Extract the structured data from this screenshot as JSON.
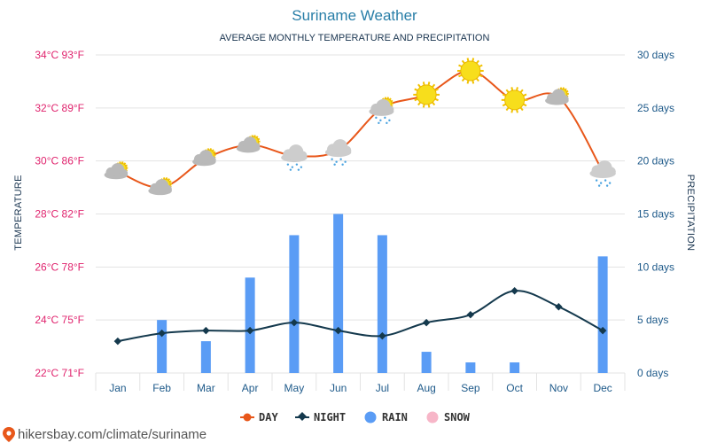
{
  "header": {
    "title": "Suriname Weather",
    "subtitle": "AVERAGE MONTHLY TEMPERATURE AND PRECIPITATION"
  },
  "axes": {
    "left_label": "TEMPERATURE",
    "right_label": "PRECIPITATION",
    "left_ticks": [
      "34°C 93°F",
      "32°C 89°F",
      "30°C 86°F",
      "28°C 82°F",
      "26°C 78°F",
      "24°C 75°F",
      "22°C 71°F"
    ],
    "right_ticks": [
      "30 days",
      "25 days",
      "20 days",
      "15 days",
      "10 days",
      "5 days",
      "0 days"
    ]
  },
  "legend": {
    "day": "DAY",
    "night": "NIGHT",
    "rain": "RAIN",
    "snow": "SNOW"
  },
  "source": "hikersbay.com/climate/suriname",
  "colors": {
    "day": "#e8571a",
    "night": "#14394d",
    "rain": "#5a9cf5",
    "snow": "#f7b6c8",
    "grid": "#e3e3e3"
  },
  "chart_data": {
    "type": "line",
    "categories": [
      "Jan",
      "Feb",
      "Mar",
      "Apr",
      "May",
      "Jun",
      "Jul",
      "Aug",
      "Sep",
      "Oct",
      "Nov",
      "Dec"
    ],
    "temperature_ylim": [
      22,
      34
    ],
    "precipitation_ylim": [
      0,
      30
    ],
    "series": [
      {
        "name": "DAY",
        "axis": "temperature",
        "unit": "°C",
        "values": [
          29.6,
          29.0,
          30.1,
          30.6,
          30.2,
          30.4,
          32.0,
          32.5,
          33.4,
          32.3,
          32.4,
          29.6
        ]
      },
      {
        "name": "NIGHT",
        "axis": "temperature",
        "unit": "°C",
        "values": [
          23.2,
          23.5,
          23.6,
          23.6,
          23.9,
          23.6,
          23.4,
          23.9,
          24.2,
          25.1,
          24.5,
          23.6
        ]
      },
      {
        "name": "RAIN",
        "axis": "precipitation",
        "unit": "days",
        "type": "bar",
        "values": [
          0,
          5,
          3,
          9,
          13,
          15,
          13,
          2,
          1,
          1,
          0,
          11
        ]
      },
      {
        "name": "SNOW",
        "axis": "precipitation",
        "unit": "days",
        "type": "bar",
        "values": [
          0,
          0,
          0,
          0,
          0,
          0,
          0,
          0,
          0,
          0,
          0,
          0
        ]
      }
    ],
    "weather_icons": [
      "partly-cloudy-icon",
      "partly-cloudy-icon",
      "partly-cloudy-icon",
      "partly-cloudy-icon",
      "rain-cloud-icon",
      "rain-cloud-icon",
      "sun-cloud-rain-icon",
      "sun-icon",
      "sun-icon",
      "sun-icon",
      "partly-cloudy-icon",
      "rain-cloud-icon"
    ],
    "grid": true,
    "legend_position": "bottom-center"
  }
}
